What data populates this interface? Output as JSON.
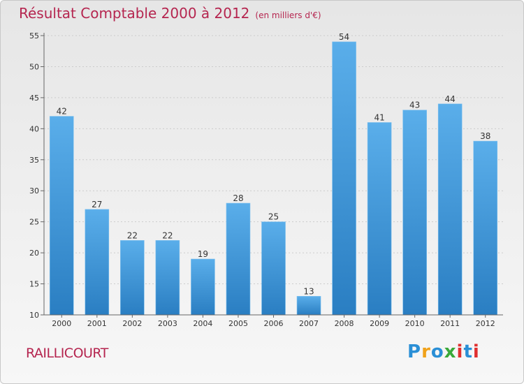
{
  "header": {
    "title": "Résultat Comptable 2000 à 2012",
    "unit": "(en milliers d'€)"
  },
  "footer": {
    "town": "RAILLICOURT",
    "logo": {
      "chars": [
        "P",
        "r",
        "o",
        "x",
        "i",
        "t",
        "i"
      ],
      "colors": [
        "#2a8fd6",
        "#f0a21b",
        "#2a8fd6",
        "#3aa93a",
        "#e03030",
        "#2a8fd6",
        "#e03030"
      ]
    }
  },
  "chart_data": {
    "type": "bar",
    "categories": [
      "2000",
      "2001",
      "2002",
      "2003",
      "2004",
      "2005",
      "2006",
      "2007",
      "2008",
      "2009",
      "2010",
      "2011",
      "2012"
    ],
    "values": [
      42,
      27,
      22,
      22,
      19,
      28,
      25,
      13,
      54,
      41,
      43,
      44,
      38
    ],
    "ylim": [
      10,
      55
    ],
    "yticks": [
      10,
      15,
      20,
      25,
      30,
      35,
      40,
      45,
      50,
      55
    ],
    "grid": true,
    "colors": {
      "bar_top": "#5aaeea",
      "bar_bottom": "#2a7ec2",
      "text": "#333333",
      "grid": "#cccccc"
    }
  }
}
